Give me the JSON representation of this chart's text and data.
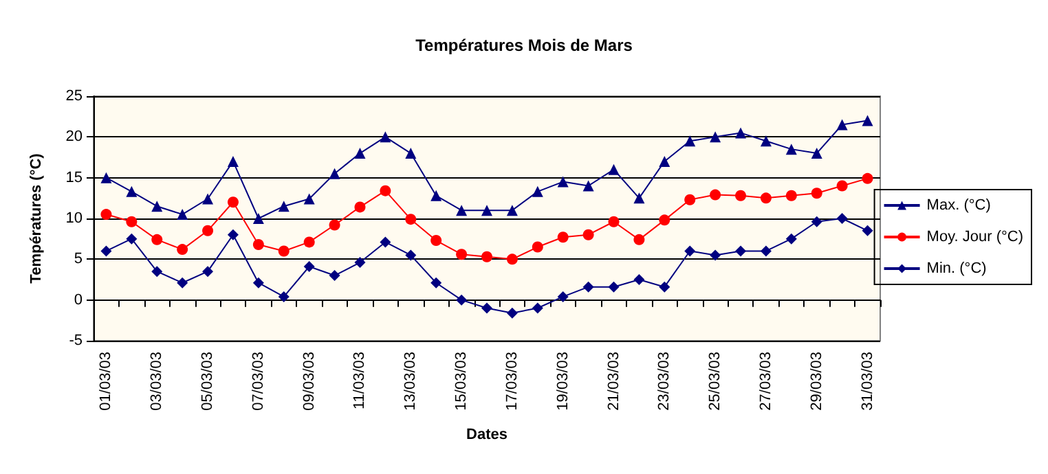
{
  "chart_data": {
    "type": "line",
    "title": "Températures Mois de Mars",
    "xlabel": "Dates",
    "ylabel": "Températures (°C)",
    "categories": [
      "01/03/03",
      null,
      "03/03/03",
      null,
      "05/03/03",
      null,
      "07/03/03",
      null,
      "09/03/03",
      null,
      "11/03/03",
      null,
      "13/03/03",
      null,
      "15/03/03",
      null,
      "17/03/03",
      null,
      "19/03/03",
      null,
      "21/03/03",
      null,
      "23/03/03",
      null,
      "25/03/03",
      null,
      "27/03/03",
      null,
      "29/03/03",
      null,
      "31/03/03"
    ],
    "series": [
      {
        "name": "Max. (°C)",
        "color": "#000080",
        "marker": "triangle",
        "values": [
          15,
          13.3,
          11.5,
          10.5,
          12.4,
          17,
          10,
          11.5,
          12.4,
          15.5,
          18,
          20,
          18,
          12.8,
          11,
          11,
          11,
          13.3,
          14.5,
          14,
          16,
          12.5,
          17,
          19.5,
          20,
          20.5,
          19.5,
          18.5,
          18,
          21.5,
          22
        ]
      },
      {
        "name": "Moy. Jour (°C)",
        "color": "#ff0000",
        "marker": "circle",
        "values": [
          10.5,
          9.6,
          7.4,
          6.2,
          8.5,
          12,
          6.8,
          6,
          7.1,
          9.2,
          11.4,
          13.4,
          9.9,
          7.3,
          5.6,
          5.3,
          5,
          6.5,
          7.7,
          8,
          9.6,
          7.4,
          9.8,
          12.3,
          12.9,
          12.8,
          12.5,
          12.8,
          13.1,
          14,
          14.9
        ]
      },
      {
        "name": "Min. (°C)",
        "color": "#000080",
        "marker": "diamond",
        "values": [
          6,
          7.5,
          3.5,
          2.1,
          3.5,
          8,
          2.1,
          0.4,
          4.1,
          3,
          4.6,
          7.1,
          5.5,
          2.1,
          0,
          -1,
          -1.6,
          -1,
          0.4,
          1.6,
          1.6,
          2.5,
          1.6,
          6,
          5.5,
          6,
          6,
          7.5,
          9.6,
          10,
          8.5
        ]
      }
    ],
    "ylim": [
      -5,
      25
    ],
    "yticks": [
      -5,
      0,
      5,
      10,
      15,
      20,
      25
    ],
    "grid": "y",
    "legend": "right"
  }
}
